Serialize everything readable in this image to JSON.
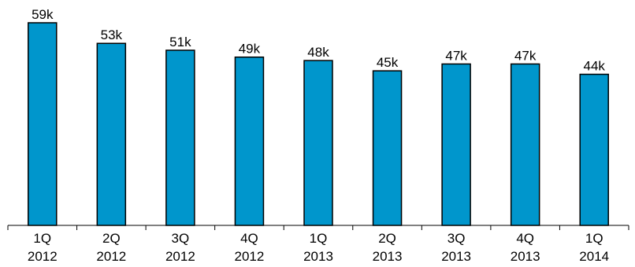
{
  "chart_data": {
    "type": "bar",
    "title": "",
    "xlabel": "",
    "ylabel": "",
    "categories": [
      [
        "1Q",
        "2012"
      ],
      [
        "2Q",
        "2012"
      ],
      [
        "3Q",
        "2012"
      ],
      [
        "4Q",
        "2012"
      ],
      [
        "1Q",
        "2013"
      ],
      [
        "2Q",
        "2013"
      ],
      [
        "3Q",
        "2013"
      ],
      [
        "4Q",
        "2013"
      ],
      [
        "1Q",
        "2014"
      ]
    ],
    "values": [
      59,
      53,
      51,
      49,
      48,
      45,
      47,
      47,
      44
    ],
    "value_labels": [
      "59k",
      "53k",
      "51k",
      "49k",
      "48k",
      "45k",
      "47k",
      "47k",
      "44k"
    ],
    "unit": "k",
    "ylim": [
      0,
      60
    ],
    "grid": false,
    "legend": "none",
    "colors": {
      "bar_fill": "#0096CC",
      "bar_stroke": "#000000",
      "axis": "#000000",
      "text": "#000000"
    }
  }
}
